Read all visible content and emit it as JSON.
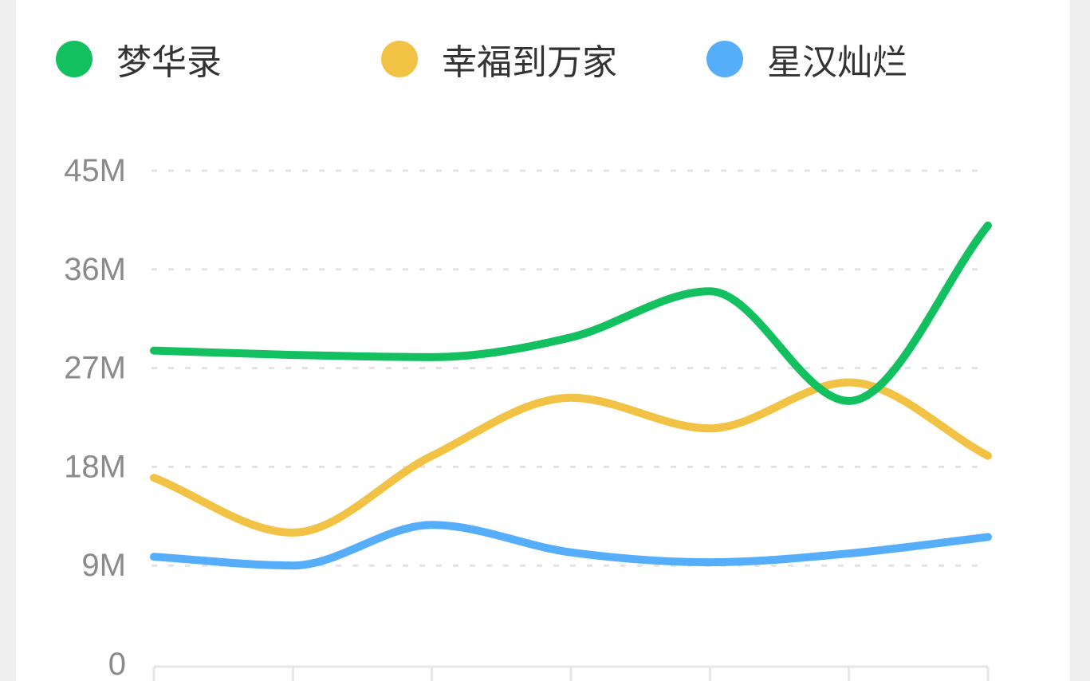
{
  "chart_data": {
    "type": "line",
    "smooth": true,
    "title": "",
    "xlabel": "",
    "ylabel": "",
    "categories": [
      "",
      "",
      "",
      "",
      "",
      "",
      ""
    ],
    "y_ticks": [
      "0",
      "9M",
      "18M",
      "27M",
      "36M",
      "45M"
    ],
    "ylim": [
      0,
      45
    ],
    "y_unit": "M",
    "grid": "horizontal-dashed",
    "legend_position": "top",
    "series": [
      {
        "name": "梦华录",
        "color": "#13c060",
        "values": [
          28.6,
          28.2,
          28.0,
          29.8,
          34.0,
          24.0,
          40.0
        ]
      },
      {
        "name": "幸福到万家",
        "color": "#f2c244",
        "values": [
          17.0,
          12.0,
          19.0,
          24.3,
          21.5,
          25.7,
          19.0
        ]
      },
      {
        "name": "星汉灿烂",
        "color": "#56aefb",
        "values": [
          9.8,
          9.0,
          12.7,
          10.2,
          9.3,
          10.1,
          11.6
        ]
      }
    ]
  }
}
